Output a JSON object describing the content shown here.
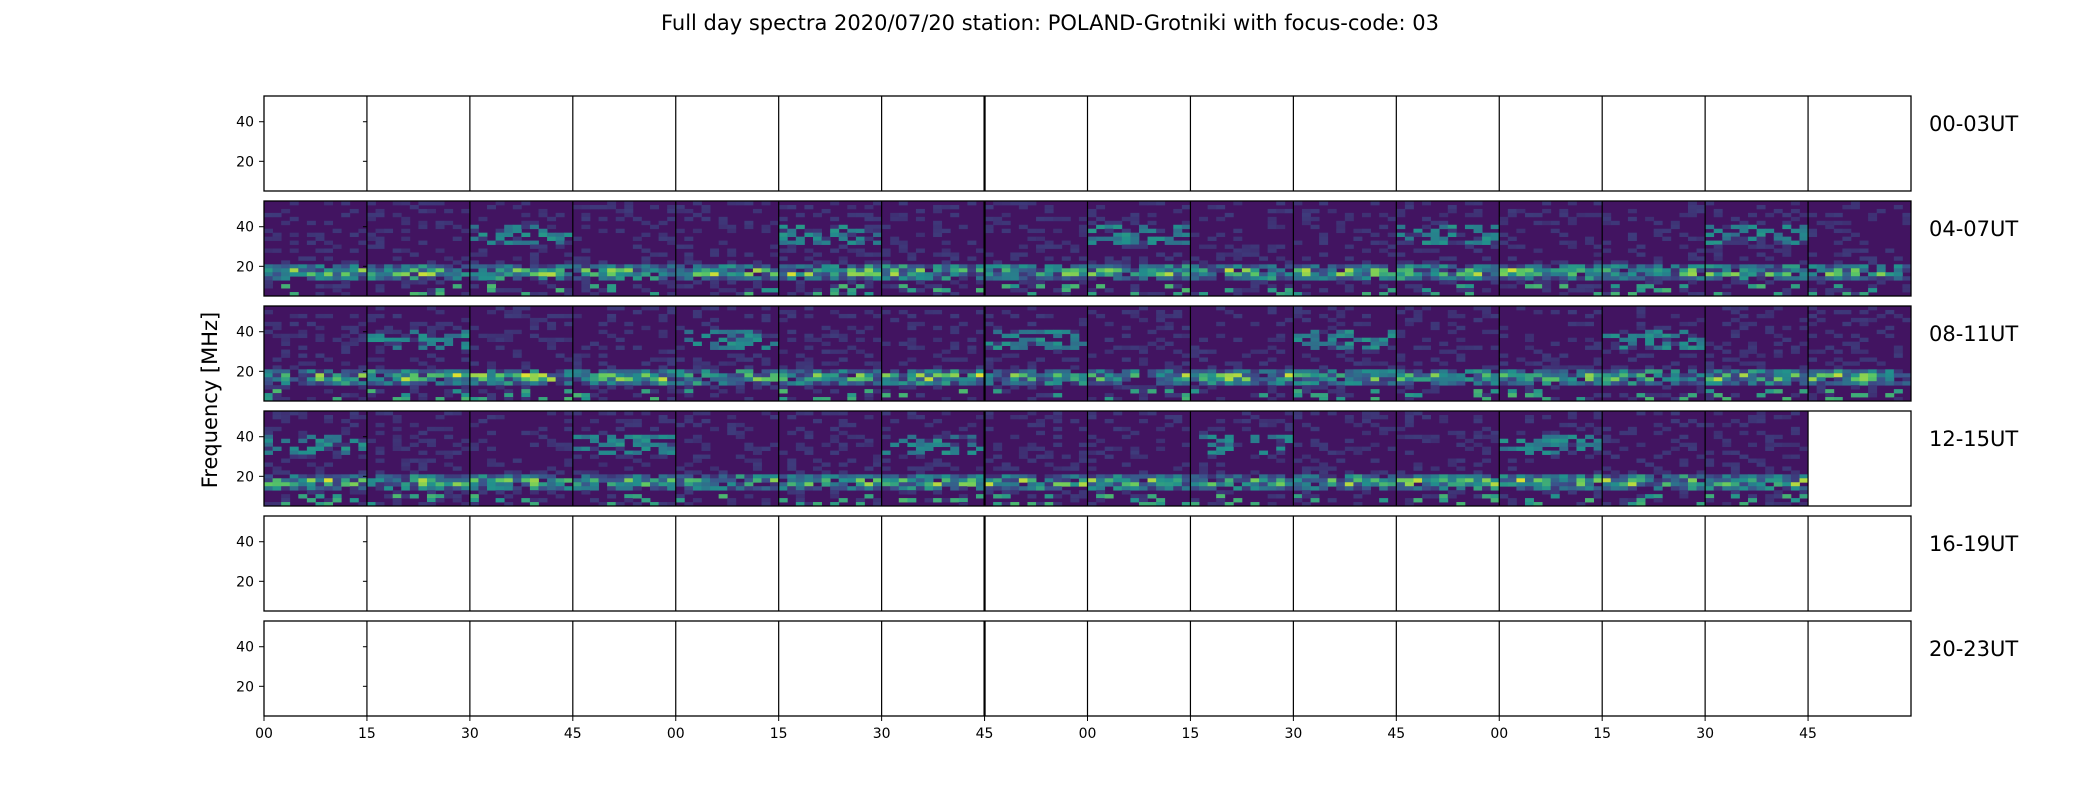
{
  "title": "Full day spectra 2020/07/20 station: POLAND-Grotniki with focus-code: 03",
  "chart_data": {
    "type": "heatmap",
    "title": "Full day spectra 2020/07/20 station: POLAND-Grotniki with focus-code: 03",
    "ylabel": "Frequency [MHz]",
    "xlabel": "",
    "colormap": "viridis",
    "yticks": [
      20,
      40
    ],
    "ylim": [
      5,
      53
    ],
    "xtick_labels": [
      "00",
      "15",
      "30",
      "45",
      "00",
      "15",
      "30",
      "45",
      "00",
      "15",
      "30",
      "45",
      "00",
      "15",
      "30",
      "45"
    ],
    "rows": [
      {
        "label": "00-03UT",
        "data_segments": 0
      },
      {
        "label": "04-07UT",
        "data_segments": 16
      },
      {
        "label": "08-11UT",
        "data_segments": 16
      },
      {
        "label": "12-15UT",
        "data_segments": 15
      },
      {
        "label": "16-19UT",
        "data_segments": 0
      },
      {
        "label": "20-23UT",
        "data_segments": 0
      }
    ],
    "segments_per_row": 16,
    "segment_minutes": 15,
    "grid": false
  }
}
